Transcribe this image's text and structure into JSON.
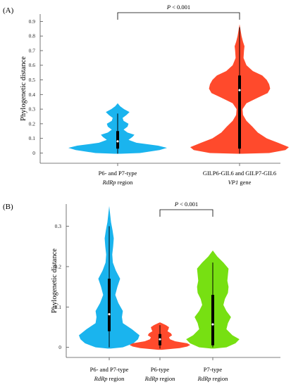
{
  "colors": {
    "blue": "#1ab4ee",
    "red": "#ff4a2c",
    "green": "#77e012",
    "axis": "#555555",
    "box": "#000000",
    "median": "#ffffff"
  },
  "chart_data": [
    {
      "panel_label": "(A)",
      "type": "violin",
      "ylabel": "Phylogenetic distance",
      "ylim": [
        -0.07,
        0.95
      ],
      "yticks": [
        "0",
        "0.1",
        "0.2",
        "0.3",
        "0.4",
        "0.5",
        "0.6",
        "0.7",
        "0.8",
        "0.9"
      ],
      "categories": [
        {
          "line1": "P6- and P7-type",
          "line2": "RdRp region",
          "line2_plain": "",
          "line2_italic": "RdRp",
          "line2_tail": " region"
        },
        {
          "line1": "GII.P6-GII.6 and GII.P7-GII.6",
          "line2": "VP1 gene",
          "line2_plain": "",
          "line2_italic": "VP1",
          "line2_tail": " gene"
        }
      ],
      "violins": [
        {
          "color": "blue",
          "min": -0.005,
          "max": 0.34,
          "q1": 0.03,
          "median": 0.08,
          "q3": 0.15,
          "whisker_low": -0.005,
          "whisker_high": 0.27,
          "profile": [
            [
              -0.005,
              0.06
            ],
            [
              0.0,
              0.45
            ],
            [
              0.02,
              0.85
            ],
            [
              0.035,
              1.0
            ],
            [
              0.05,
              0.82
            ],
            [
              0.07,
              0.38
            ],
            [
              0.09,
              0.22
            ],
            [
              0.11,
              0.3
            ],
            [
              0.125,
              0.34
            ],
            [
              0.14,
              0.2
            ],
            [
              0.16,
              0.12
            ],
            [
              0.18,
              0.2
            ],
            [
              0.2,
              0.22
            ],
            [
              0.22,
              0.12
            ],
            [
              0.24,
              0.1
            ],
            [
              0.26,
              0.18
            ],
            [
              0.28,
              0.24
            ],
            [
              0.3,
              0.13
            ],
            [
              0.32,
              0.05
            ],
            [
              0.34,
              0.0
            ]
          ]
        },
        {
          "color": "red",
          "min": -0.005,
          "max": 0.88,
          "q1": 0.03,
          "median": 0.43,
          "q3": 0.53,
          "whisker_low": -0.005,
          "whisker_high": 0.86,
          "profile": [
            [
              -0.005,
              0.05
            ],
            [
              0.0,
              0.6
            ],
            [
              0.02,
              0.93
            ],
            [
              0.04,
              1.0
            ],
            [
              0.07,
              0.78
            ],
            [
              0.1,
              0.55
            ],
            [
              0.14,
              0.37
            ],
            [
              0.18,
              0.26
            ],
            [
              0.22,
              0.14
            ],
            [
              0.26,
              0.07
            ],
            [
              0.3,
              0.06
            ],
            [
              0.34,
              0.14
            ],
            [
              0.38,
              0.38
            ],
            [
              0.41,
              0.57
            ],
            [
              0.44,
              0.62
            ],
            [
              0.47,
              0.6
            ],
            [
              0.5,
              0.55
            ],
            [
              0.53,
              0.46
            ],
            [
              0.56,
              0.27
            ],
            [
              0.6,
              0.14
            ],
            [
              0.65,
              0.08
            ],
            [
              0.7,
              0.09
            ],
            [
              0.73,
              0.1
            ],
            [
              0.76,
              0.07
            ],
            [
              0.8,
              0.04
            ],
            [
              0.84,
              0.02
            ],
            [
              0.88,
              0.0
            ]
          ]
        }
      ],
      "significance": {
        "text": "P < 0.001",
        "from": 0,
        "to": 1
      }
    },
    {
      "panel_label": "(B)",
      "type": "violin",
      "ylabel": "Phylogenetic distance",
      "ylim": [
        -0.025,
        0.355
      ],
      "yticks": [
        "0",
        "0.1",
        "0.2",
        "0.3"
      ],
      "categories": [
        {
          "line1": "P6- and P7-type",
          "line2": "RdRp region",
          "line2_plain": "",
          "line2_italic": "RdRp",
          "line2_tail": " region"
        },
        {
          "line1": "P6-type",
          "line2": "RdRp region",
          "line2_plain": "",
          "line2_italic": "RdRp",
          "line2_tail": " region"
        },
        {
          "line1": "P7-type",
          "line2": "RdRp region",
          "line2_plain": "",
          "line2_italic": "RdRp",
          "line2_tail": " region"
        }
      ],
      "violins": [
        {
          "color": "blue",
          "min": -0.003,
          "max": 0.35,
          "q1": 0.04,
          "median": 0.082,
          "q3": 0.17,
          "whisker_low": 0.0,
          "whisker_high": 0.3,
          "profile": [
            [
              -0.003,
              0.05
            ],
            [
              0.0,
              0.45
            ],
            [
              0.01,
              0.8
            ],
            [
              0.02,
              0.95
            ],
            [
              0.03,
              1.0
            ],
            [
              0.045,
              0.75
            ],
            [
              0.06,
              0.45
            ],
            [
              0.075,
              0.42
            ],
            [
              0.09,
              0.45
            ],
            [
              0.11,
              0.3
            ],
            [
              0.13,
              0.2
            ],
            [
              0.15,
              0.27
            ],
            [
              0.17,
              0.36
            ],
            [
              0.19,
              0.22
            ],
            [
              0.21,
              0.12
            ],
            [
              0.23,
              0.1
            ],
            [
              0.25,
              0.13
            ],
            [
              0.27,
              0.15
            ],
            [
              0.29,
              0.11
            ],
            [
              0.31,
              0.06
            ],
            [
              0.33,
              0.03
            ],
            [
              0.35,
              0.0
            ]
          ]
        },
        {
          "color": "red",
          "min": -0.006,
          "max": 0.062,
          "q1": 0.005,
          "median": 0.02,
          "q3": 0.033,
          "whisker_low": -0.003,
          "whisker_high": 0.055,
          "profile": [
            [
              -0.006,
              0.06
            ],
            [
              -0.002,
              0.65
            ],
            [
              0.002,
              0.9
            ],
            [
              0.006,
              1.0
            ],
            [
              0.01,
              0.9
            ],
            [
              0.015,
              0.5
            ],
            [
              0.02,
              0.33
            ],
            [
              0.025,
              0.3
            ],
            [
              0.03,
              0.4
            ],
            [
              0.035,
              0.36
            ],
            [
              0.04,
              0.25
            ],
            [
              0.045,
              0.28
            ],
            [
              0.05,
              0.3
            ],
            [
              0.055,
              0.2
            ],
            [
              0.06,
              0.06
            ],
            [
              0.062,
              0.0
            ]
          ]
        },
        {
          "color": "green",
          "min": -0.003,
          "max": 0.24,
          "q1": 0.005,
          "median": 0.057,
          "q3": 0.13,
          "whisker_low": 0.0,
          "whisker_high": 0.21,
          "profile": [
            [
              -0.003,
              0.05
            ],
            [
              0.0,
              0.45
            ],
            [
              0.01,
              0.75
            ],
            [
              0.02,
              0.88
            ],
            [
              0.03,
              0.65
            ],
            [
              0.045,
              0.45
            ],
            [
              0.06,
              0.5
            ],
            [
              0.075,
              0.6
            ],
            [
              0.09,
              0.45
            ],
            [
              0.105,
              0.35
            ],
            [
              0.12,
              0.4
            ],
            [
              0.135,
              0.5
            ],
            [
              0.15,
              0.52
            ],
            [
              0.165,
              0.48
            ],
            [
              0.18,
              0.5
            ],
            [
              0.195,
              0.52
            ],
            [
              0.21,
              0.35
            ],
            [
              0.225,
              0.15
            ],
            [
              0.24,
              0.0
            ]
          ]
        }
      ],
      "significance": {
        "text": "P < 0.001",
        "from": 1,
        "to": 2
      }
    }
  ]
}
